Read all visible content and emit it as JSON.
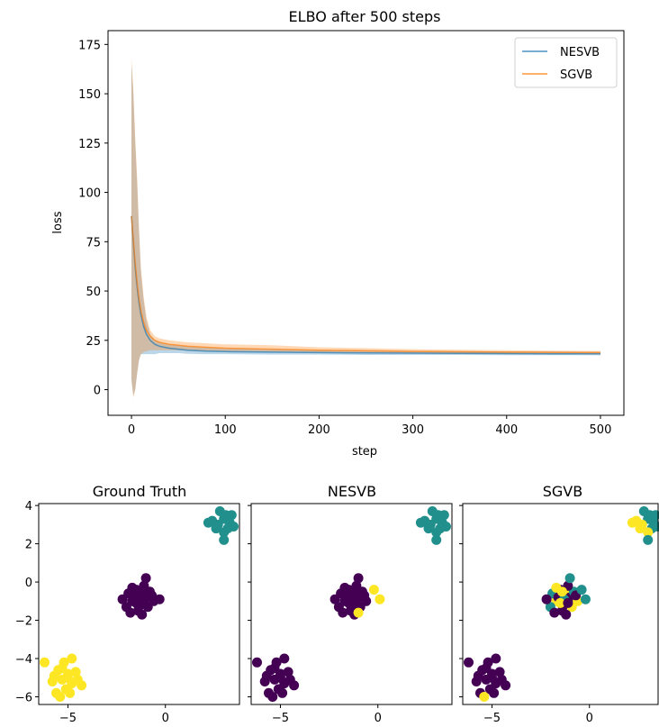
{
  "chart_data": [
    {
      "type": "line",
      "title": "ELBO after 500 steps",
      "xlabel": "step",
      "ylabel": "loss",
      "xlim": [
        -25,
        525
      ],
      "ylim": [
        -13,
        182
      ],
      "xticks": [
        0,
        100,
        200,
        300,
        400,
        500
      ],
      "yticks": [
        0,
        25,
        50,
        75,
        100,
        125,
        150,
        175
      ],
      "grid": false,
      "legend_position": "top-right",
      "series": [
        {
          "name": "NESVB",
          "color": "#1f77b4",
          "x": [
            0,
            2,
            4,
            6,
            8,
            10,
            13,
            16,
            20,
            25,
            30,
            40,
            50,
            60,
            80,
            100,
            150,
            200,
            250,
            300,
            350,
            400,
            450,
            500
          ],
          "values": [
            88,
            75,
            62,
            52,
            44,
            38,
            32,
            28,
            25,
            23,
            22,
            21,
            20.5,
            20,
            19.5,
            19.3,
            19,
            18.8,
            18.6,
            18.5,
            18.4,
            18.3,
            18.2,
            18.2
          ],
          "band_low": [
            5,
            -3,
            0,
            8,
            15,
            18,
            18,
            18,
            18,
            18,
            18.5,
            18.5,
            18.5,
            18.2,
            18,
            18,
            17.8,
            17.8,
            17.6,
            17.6,
            17.6,
            17.5,
            17.5,
            17.4
          ],
          "band_high": [
            165,
            150,
            125,
            105,
            80,
            60,
            45,
            35,
            28,
            25,
            24,
            23,
            22.5,
            22,
            21.5,
            21,
            20.5,
            20,
            19.8,
            19.6,
            19.5,
            19.4,
            19.3,
            19.2
          ]
        },
        {
          "name": "SGVB",
          "color": "#ff7f0e",
          "x": [
            0,
            2,
            4,
            6,
            8,
            10,
            13,
            16,
            20,
            25,
            30,
            40,
            50,
            60,
            80,
            100,
            150,
            200,
            250,
            300,
            350,
            400,
            450,
            500
          ],
          "values": [
            88,
            76,
            64,
            54,
            46,
            40,
            34,
            30,
            27,
            25,
            24,
            23,
            22.5,
            22,
            21.5,
            21,
            20.5,
            20,
            19.7,
            19.4,
            19.2,
            19,
            18.9,
            18.8
          ],
          "band_low": [
            5,
            -4,
            0,
            8,
            15,
            18,
            19,
            19.5,
            20,
            20,
            20,
            20,
            20,
            19.8,
            19.5,
            19.3,
            19,
            18.8,
            18.5,
            18.3,
            18.2,
            18,
            18,
            17.9
          ],
          "band_high": [
            168,
            152,
            128,
            108,
            82,
            62,
            47,
            37,
            30,
            27,
            26,
            25,
            24.5,
            24,
            23.5,
            23,
            22.5,
            21.5,
            21,
            20.5,
            20.2,
            20,
            19.8,
            19.6
          ]
        }
      ]
    },
    {
      "type": "scatter",
      "title": "Ground Truth",
      "xlim": [
        -6.5,
        3.8
      ],
      "ylim": [
        -6.4,
        4.1
      ],
      "xticks": [
        -5,
        0
      ],
      "yticks": [
        -6,
        -4,
        -2,
        0,
        2,
        4
      ],
      "colors": {
        "0": "#440154",
        "1": "#21908d",
        "2": "#fde725"
      },
      "points": [
        [
          -1.5,
          -0.4,
          0
        ],
        [
          -1.2,
          -0.6,
          0
        ],
        [
          -1.0,
          -0.8,
          0
        ],
        [
          -1.7,
          -1.0,
          0
        ],
        [
          -1.3,
          -1.2,
          0
        ],
        [
          -0.8,
          -0.5,
          0
        ],
        [
          -1.9,
          -0.6,
          0
        ],
        [
          -1.1,
          -0.2,
          0
        ],
        [
          -1.4,
          -1.5,
          0
        ],
        [
          -0.6,
          -1.0,
          0
        ],
        [
          -2.0,
          -1.3,
          0
        ],
        [
          -1.6,
          -0.8,
          0
        ],
        [
          -0.9,
          -1.3,
          0
        ],
        [
          -1.3,
          -0.9,
          0
        ],
        [
          -1.8,
          -1.6,
          0
        ],
        [
          -1.0,
          0.2,
          0
        ],
        [
          -1.5,
          -1.1,
          0
        ],
        [
          -0.7,
          -0.7,
          0
        ],
        [
          -1.2,
          -1.7,
          0
        ],
        [
          -1.7,
          -0.3,
          0
        ],
        [
          -0.3,
          -0.9,
          0
        ],
        [
          -2.2,
          -0.9,
          0
        ],
        [
          -1.4,
          -0.5,
          0
        ],
        [
          -1.1,
          -1.1,
          0
        ],
        [
          3.0,
          3.3,
          1
        ],
        [
          2.7,
          3.0,
          1
        ],
        [
          3.2,
          2.8,
          1
        ],
        [
          2.4,
          3.2,
          1
        ],
        [
          3.4,
          3.5,
          1
        ],
        [
          3.0,
          2.6,
          1
        ],
        [
          2.8,
          3.7,
          1
        ],
        [
          3.3,
          3.1,
          1
        ],
        [
          2.2,
          3.1,
          1
        ],
        [
          3.0,
          2.2,
          1
        ],
        [
          3.5,
          2.9,
          1
        ],
        [
          2.6,
          2.8,
          1
        ],
        [
          3.1,
          3.5,
          1
        ],
        [
          -5.0,
          -4.8,
          2
        ],
        [
          -5.3,
          -5.1,
          2
        ],
        [
          -4.8,
          -5.3,
          2
        ],
        [
          -5.5,
          -4.6,
          2
        ],
        [
          -5.1,
          -5.6,
          2
        ],
        [
          -4.6,
          -4.7,
          2
        ],
        [
          -5.8,
          -5.2,
          2
        ],
        [
          -5.2,
          -4.2,
          2
        ],
        [
          -4.9,
          -5.8,
          2
        ],
        [
          -5.6,
          -5.8,
          2
        ],
        [
          -4.5,
          -5.1,
          2
        ],
        [
          -5.3,
          -4.5,
          2
        ],
        [
          -4.8,
          -4.0,
          2
        ],
        [
          -6.2,
          -4.2,
          2
        ],
        [
          -5.4,
          -6.0,
          2
        ],
        [
          -4.3,
          -5.4,
          2
        ],
        [
          -5.0,
          -5.0,
          2
        ],
        [
          -5.7,
          -4.9,
          2
        ]
      ]
    },
    {
      "type": "scatter",
      "title": "NESVB",
      "xlim": [
        -6.5,
        3.8
      ],
      "ylim": [
        -6.4,
        4.1
      ],
      "xticks": [
        -5,
        0
      ],
      "yticks": [
        -6,
        -4,
        -2,
        0,
        2,
        4
      ],
      "colors": {
        "0": "#440154",
        "1": "#21908d",
        "2": "#fde725"
      },
      "points": [
        [
          -1.5,
          -0.4,
          0
        ],
        [
          -1.2,
          -0.6,
          0
        ],
        [
          -1.0,
          -0.8,
          0
        ],
        [
          -1.7,
          -1.0,
          0
        ],
        [
          -1.3,
          -1.2,
          0
        ],
        [
          -0.8,
          -0.5,
          0
        ],
        [
          -1.9,
          -0.6,
          0
        ],
        [
          -1.1,
          -0.2,
          0
        ],
        [
          -1.4,
          -1.5,
          0
        ],
        [
          -0.6,
          -1.0,
          0
        ],
        [
          -2.0,
          -1.3,
          0
        ],
        [
          -1.6,
          -0.8,
          0
        ],
        [
          -0.9,
          -1.3,
          0
        ],
        [
          -1.3,
          -0.9,
          0
        ],
        [
          -1.8,
          -1.6,
          0
        ],
        [
          -1.0,
          0.2,
          0
        ],
        [
          -1.5,
          -1.1,
          0
        ],
        [
          -0.7,
          -0.7,
          0
        ],
        [
          -1.2,
          -1.7,
          0
        ],
        [
          -1.7,
          -0.3,
          0
        ],
        [
          -2.2,
          -0.9,
          0
        ],
        [
          -1.4,
          -0.5,
          0
        ],
        [
          -1.1,
          -1.1,
          0
        ],
        [
          0.1,
          -0.9,
          2
        ],
        [
          -0.2,
          -0.4,
          2
        ],
        [
          -1.0,
          -1.6,
          2
        ],
        [
          3.0,
          3.3,
          1
        ],
        [
          2.7,
          3.0,
          1
        ],
        [
          3.2,
          2.8,
          1
        ],
        [
          2.4,
          3.2,
          1
        ],
        [
          3.4,
          3.5,
          1
        ],
        [
          3.0,
          2.6,
          1
        ],
        [
          2.8,
          3.7,
          1
        ],
        [
          3.3,
          3.1,
          1
        ],
        [
          2.2,
          3.1,
          1
        ],
        [
          3.0,
          2.2,
          1
        ],
        [
          3.5,
          2.9,
          1
        ],
        [
          2.6,
          2.8,
          1
        ],
        [
          3.1,
          3.5,
          1
        ],
        [
          -5.0,
          -4.8,
          0
        ],
        [
          -5.3,
          -5.1,
          0
        ],
        [
          -4.8,
          -5.3,
          0
        ],
        [
          -5.5,
          -4.6,
          0
        ],
        [
          -5.1,
          -5.6,
          0
        ],
        [
          -4.6,
          -4.7,
          0
        ],
        [
          -5.8,
          -5.2,
          0
        ],
        [
          -5.2,
          -4.2,
          0
        ],
        [
          -4.9,
          -5.8,
          0
        ],
        [
          -5.6,
          -5.8,
          0
        ],
        [
          -4.5,
          -5.1,
          0
        ],
        [
          -5.3,
          -4.5,
          0
        ],
        [
          -4.8,
          -4.0,
          0
        ],
        [
          -6.2,
          -4.2,
          0
        ],
        [
          -5.4,
          -6.0,
          0
        ],
        [
          -4.3,
          -5.4,
          0
        ],
        [
          -5.0,
          -5.0,
          0
        ],
        [
          -5.7,
          -4.9,
          0
        ]
      ]
    },
    {
      "type": "scatter",
      "title": "SGVB",
      "xlim": [
        -6.5,
        3.8
      ],
      "ylim": [
        -6.4,
        4.1
      ],
      "xticks": [
        -5,
        0
      ],
      "yticks": [
        -6,
        -4,
        -2,
        0,
        2,
        4
      ],
      "colors": {
        "0": "#440154",
        "1": "#21908d",
        "2": "#fde725"
      },
      "points": [
        [
          -1.5,
          -0.4,
          0
        ],
        [
          -1.2,
          -0.6,
          2
        ],
        [
          -1.0,
          -0.8,
          0
        ],
        [
          -1.7,
          -1.0,
          2
        ],
        [
          -1.3,
          -1.2,
          0
        ],
        [
          -0.8,
          -0.5,
          1
        ],
        [
          -1.9,
          -0.6,
          1
        ],
        [
          -1.1,
          -0.2,
          0
        ],
        [
          -1.4,
          -1.5,
          0
        ],
        [
          -0.6,
          -1.0,
          2
        ],
        [
          -2.0,
          -1.3,
          1
        ],
        [
          -1.6,
          -0.8,
          0
        ],
        [
          -0.9,
          -1.3,
          2
        ],
        [
          -1.3,
          -0.9,
          1
        ],
        [
          -1.8,
          -1.6,
          0
        ],
        [
          -1.0,
          0.2,
          1
        ],
        [
          -1.5,
          -1.1,
          2
        ],
        [
          -0.7,
          -0.7,
          0
        ],
        [
          -1.2,
          -1.7,
          0
        ],
        [
          -1.7,
          -0.3,
          2
        ],
        [
          -0.2,
          -0.9,
          1
        ],
        [
          -2.2,
          -0.9,
          0
        ],
        [
          -1.4,
          -0.5,
          2
        ],
        [
          -1.1,
          -1.1,
          0
        ],
        [
          -0.4,
          -0.4,
          1
        ],
        [
          3.0,
          3.3,
          1
        ],
        [
          2.7,
          3.0,
          2
        ],
        [
          3.2,
          2.8,
          1
        ],
        [
          2.4,
          3.2,
          2
        ],
        [
          3.4,
          3.5,
          1
        ],
        [
          3.0,
          2.6,
          2
        ],
        [
          2.8,
          3.7,
          1
        ],
        [
          3.3,
          3.1,
          1
        ],
        [
          2.2,
          3.1,
          2
        ],
        [
          3.0,
          2.2,
          1
        ],
        [
          3.5,
          2.9,
          1
        ],
        [
          2.6,
          2.8,
          2
        ],
        [
          3.1,
          3.5,
          1
        ],
        [
          -5.0,
          -4.8,
          0
        ],
        [
          -5.3,
          -5.1,
          0
        ],
        [
          -4.8,
          -5.3,
          0
        ],
        [
          -5.5,
          -4.6,
          0
        ],
        [
          -5.1,
          -5.6,
          0
        ],
        [
          -4.6,
          -4.7,
          0
        ],
        [
          -5.8,
          -5.2,
          0
        ],
        [
          -5.2,
          -4.2,
          0
        ],
        [
          -4.9,
          -5.8,
          0
        ],
        [
          -5.6,
          -5.8,
          0
        ],
        [
          -4.5,
          -5.1,
          0
        ],
        [
          -5.3,
          -4.5,
          0
        ],
        [
          -4.8,
          -4.0,
          0
        ],
        [
          -6.2,
          -4.2,
          0
        ],
        [
          -5.4,
          -6.0,
          2
        ],
        [
          -4.3,
          -5.4,
          0
        ],
        [
          -5.0,
          -5.0,
          0
        ],
        [
          -5.7,
          -4.9,
          0
        ]
      ]
    }
  ]
}
